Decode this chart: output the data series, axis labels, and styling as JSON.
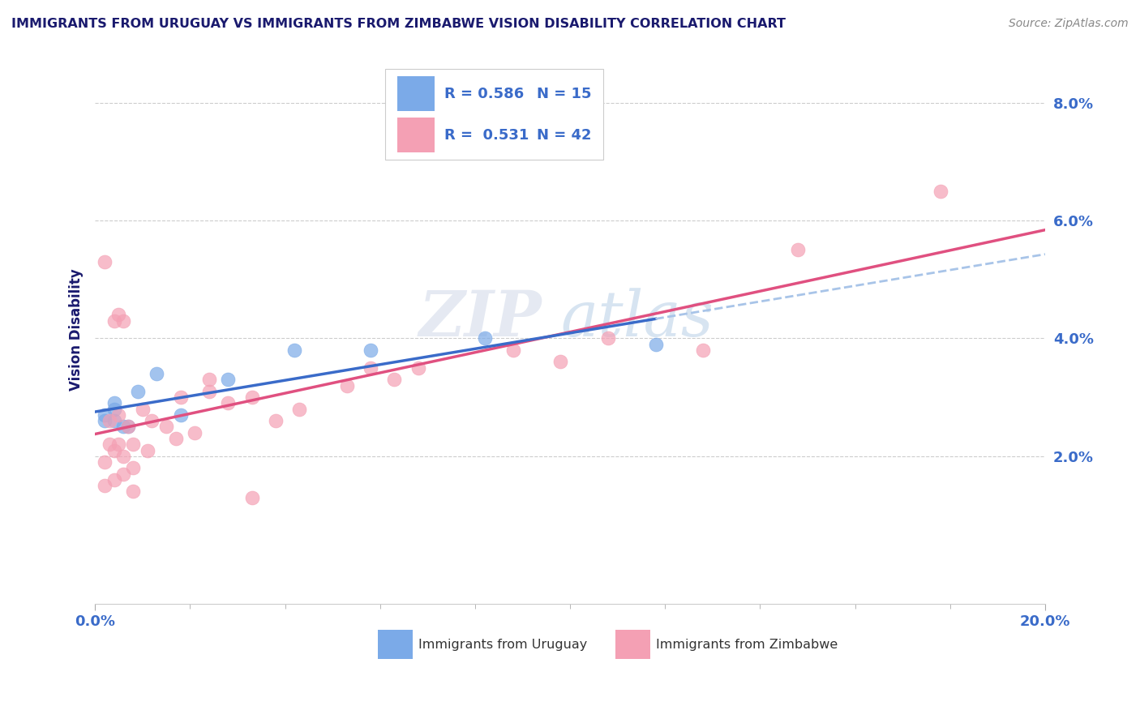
{
  "title": "IMMIGRANTS FROM URUGUAY VS IMMIGRANTS FROM ZIMBABWE VISION DISABILITY CORRELATION CHART",
  "source": "Source: ZipAtlas.com",
  "ylabel": "Vision Disability",
  "xlim": [
    0.0,
    0.2
  ],
  "ylim": [
    -0.005,
    0.088
  ],
  "ytick_positions": [
    0.02,
    0.04,
    0.06,
    0.08
  ],
  "ytick_labels": [
    "2.0%",
    "4.0%",
    "6.0%",
    "8.0%"
  ],
  "xtick_major": [
    0.0,
    0.2
  ],
  "xtick_major_labels": [
    "0.0%",
    "20.0%"
  ],
  "xtick_minor": [
    0.02,
    0.04,
    0.06,
    0.08,
    0.1,
    0.12,
    0.14,
    0.16,
    0.18
  ],
  "uruguay_color": "#7baae8",
  "uruguay_line_color": "#3a6bc9",
  "zimbabwe_color": "#f4a0b4",
  "zimbabwe_line_color": "#e05080",
  "dashed_line_color": "#a8c4e8",
  "legend_R_uruguay": "0.586",
  "legend_N_uruguay": "15",
  "legend_R_zimbabwe": "0.531",
  "legend_N_zimbabwe": "42",
  "watermark": "ZIPatlas",
  "uruguay_scatter": [
    [
      0.004,
      0.026
    ],
    [
      0.018,
      0.027
    ],
    [
      0.028,
      0.033
    ],
    [
      0.009,
      0.031
    ],
    [
      0.004,
      0.028
    ],
    [
      0.006,
      0.025
    ],
    [
      0.002,
      0.026
    ],
    [
      0.042,
      0.038
    ],
    [
      0.058,
      0.038
    ],
    [
      0.082,
      0.04
    ],
    [
      0.118,
      0.039
    ],
    [
      0.004,
      0.029
    ],
    [
      0.002,
      0.027
    ],
    [
      0.007,
      0.025
    ],
    [
      0.013,
      0.034
    ]
  ],
  "zimbabwe_scatter": [
    [
      0.002,
      0.053
    ],
    [
      0.004,
      0.043
    ],
    [
      0.006,
      0.043
    ],
    [
      0.005,
      0.044
    ],
    [
      0.003,
      0.026
    ],
    [
      0.005,
      0.027
    ],
    [
      0.007,
      0.025
    ],
    [
      0.003,
      0.022
    ],
    [
      0.005,
      0.022
    ],
    [
      0.008,
      0.022
    ],
    [
      0.004,
      0.021
    ],
    [
      0.006,
      0.02
    ],
    [
      0.002,
      0.019
    ],
    [
      0.008,
      0.018
    ],
    [
      0.006,
      0.017
    ],
    [
      0.004,
      0.016
    ],
    [
      0.01,
      0.028
    ],
    [
      0.012,
      0.026
    ],
    [
      0.015,
      0.025
    ],
    [
      0.018,
      0.03
    ],
    [
      0.024,
      0.031
    ],
    [
      0.024,
      0.033
    ],
    [
      0.028,
      0.029
    ],
    [
      0.033,
      0.03
    ],
    [
      0.021,
      0.024
    ],
    [
      0.017,
      0.023
    ],
    [
      0.011,
      0.021
    ],
    [
      0.038,
      0.026
    ],
    [
      0.043,
      0.028
    ],
    [
      0.058,
      0.035
    ],
    [
      0.053,
      0.032
    ],
    [
      0.063,
      0.033
    ],
    [
      0.068,
      0.035
    ],
    [
      0.088,
      0.038
    ],
    [
      0.098,
      0.036
    ],
    [
      0.108,
      0.04
    ],
    [
      0.128,
      0.038
    ],
    [
      0.148,
      0.055
    ],
    [
      0.178,
      0.065
    ],
    [
      0.002,
      0.015
    ],
    [
      0.008,
      0.014
    ],
    [
      0.033,
      0.013
    ]
  ],
  "background_color": "#ffffff",
  "grid_color": "#cccccc",
  "title_color": "#1a1a6e",
  "axis_label_color": "#1a1a6e",
  "tick_color": "#3a6bc9",
  "legend_text_color": "#1a1a6e",
  "legend_value_color": "#3a6bc9"
}
